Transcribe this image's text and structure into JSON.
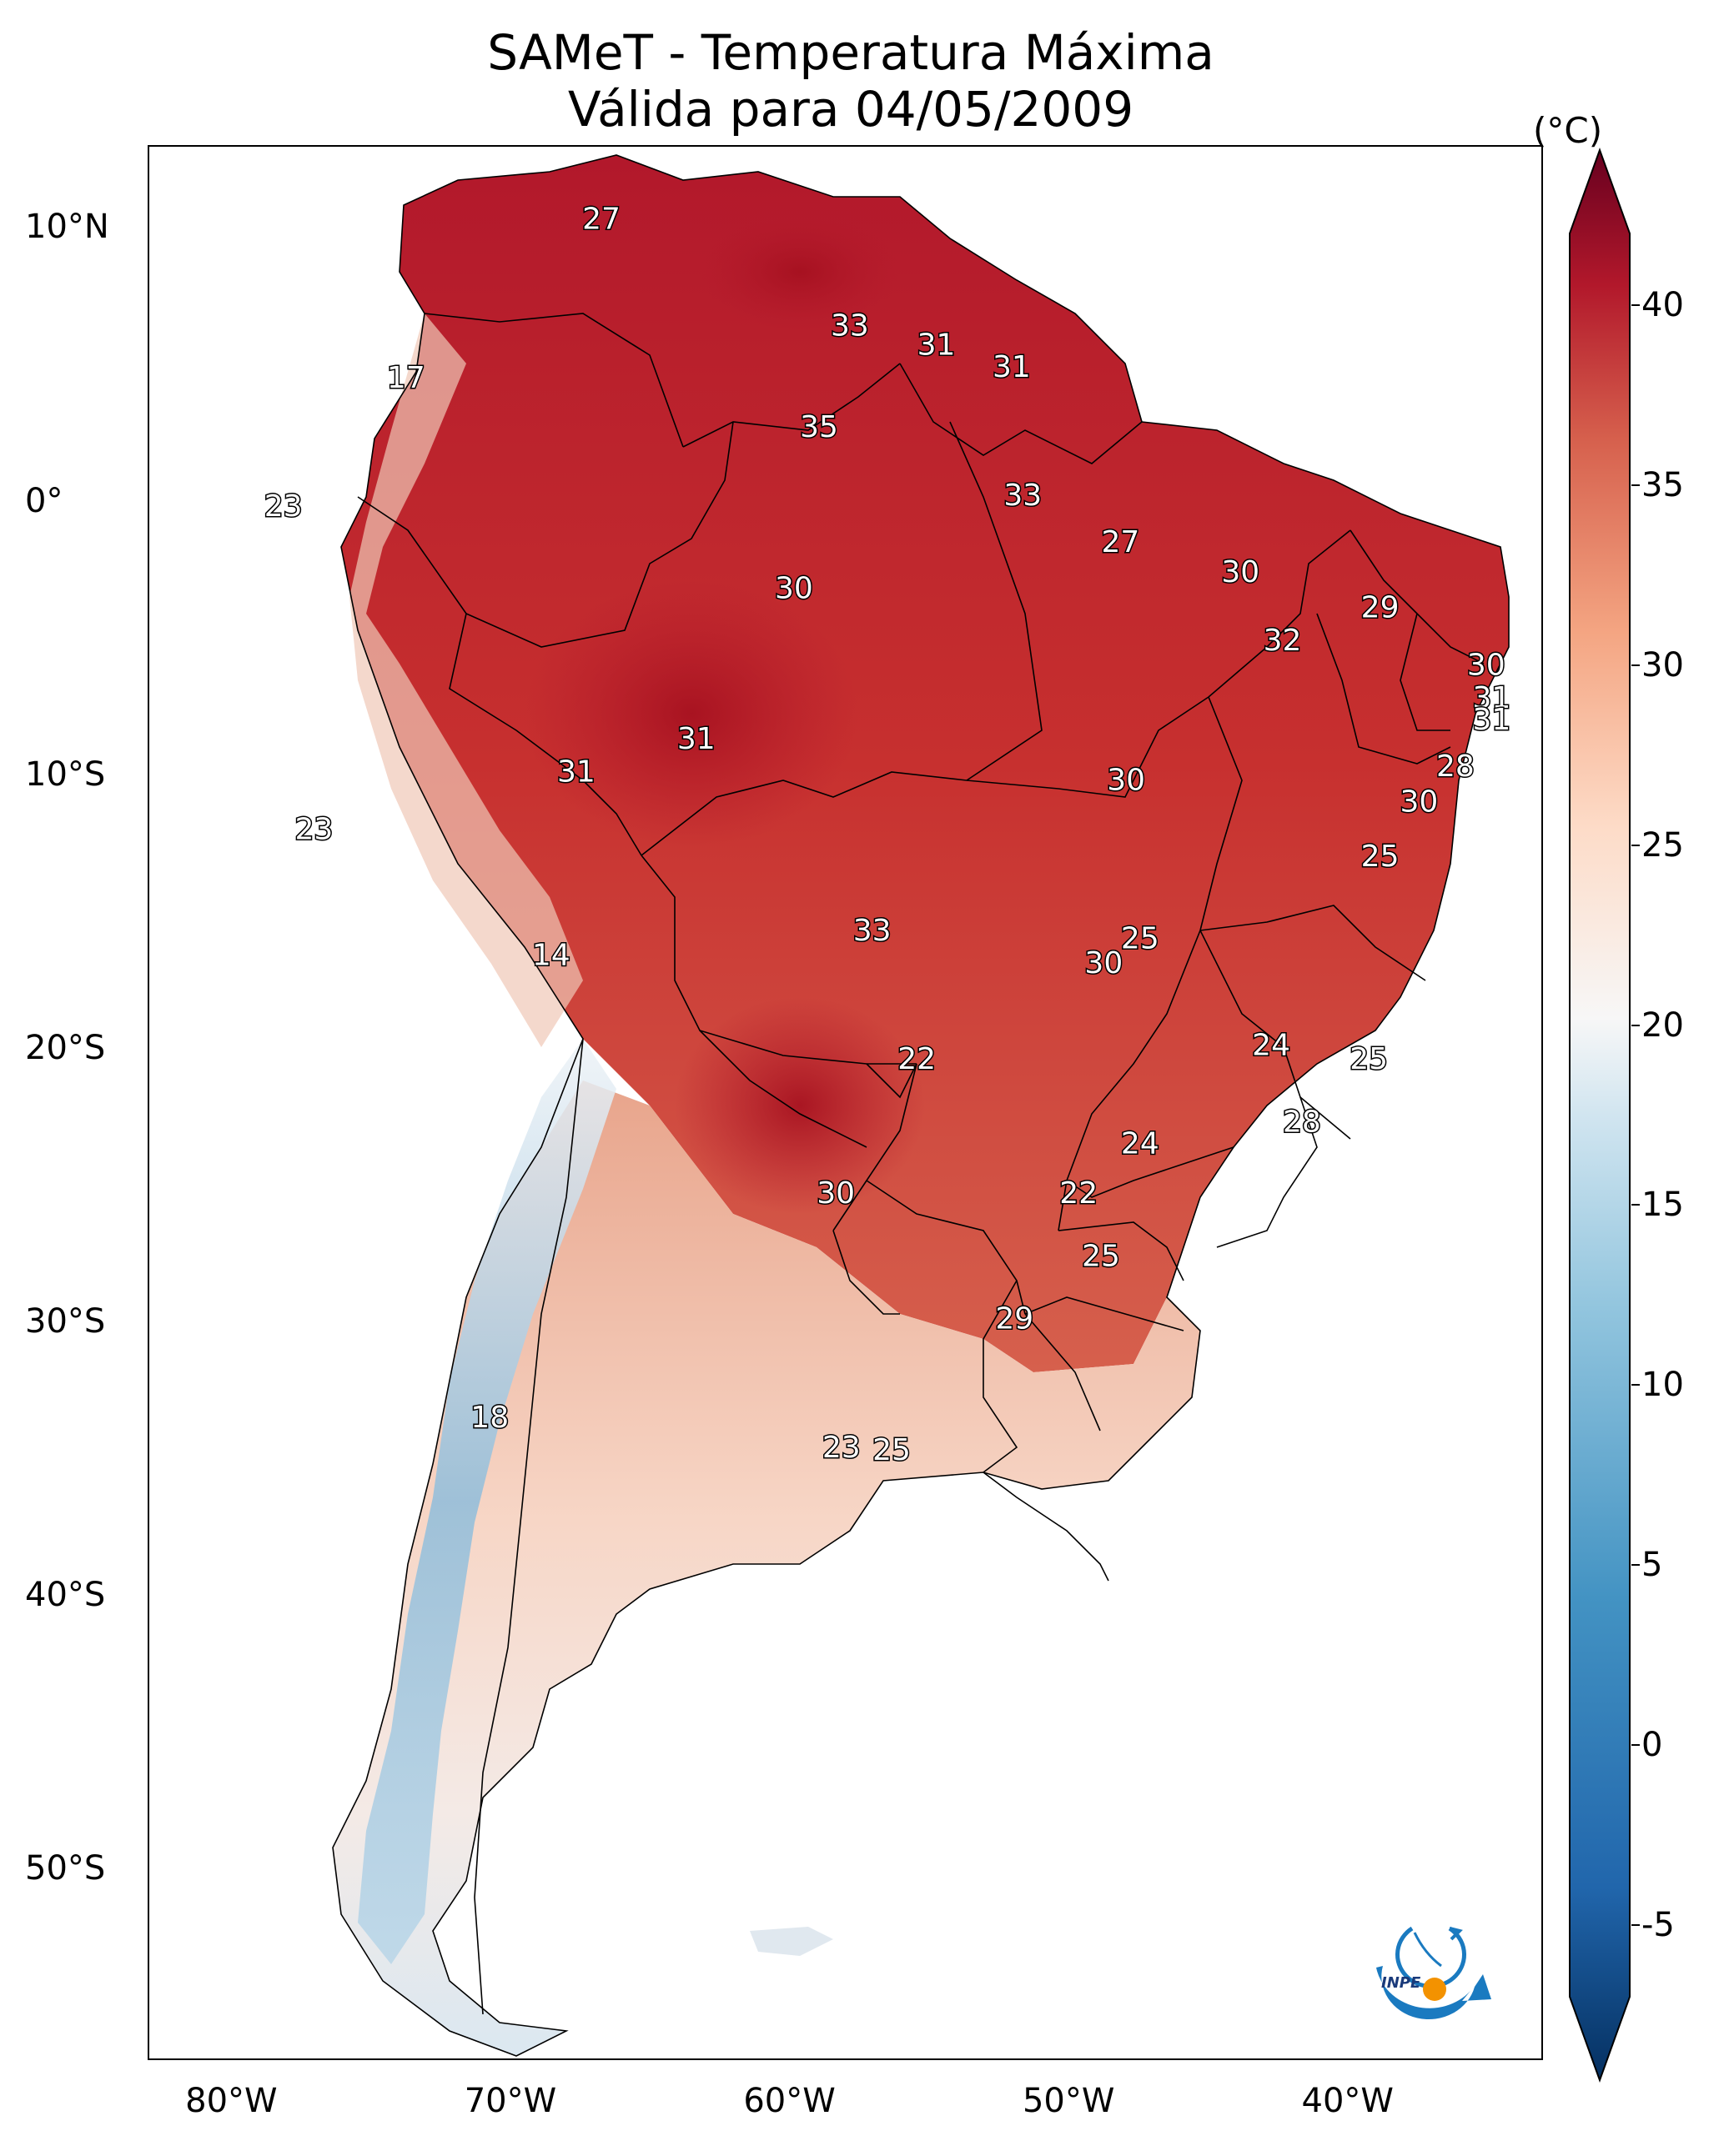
{
  "title": {
    "line1": "SAMeT - Temperatura Máxima",
    "line2": "Válida para 04/05/2009"
  },
  "chart_data": {
    "type": "heatmap",
    "title": "SAMeT - Temperatura Máxima",
    "subtitle": "Válida para 04/05/2009",
    "variable": "Temperatura Máxima",
    "unit": "(°C)",
    "xlim": [
      -83,
      -33
    ],
    "ylim": [
      -57,
      13
    ],
    "x_ticks": [
      {
        "value": -80,
        "label": "80°W"
      },
      {
        "value": -70,
        "label": "70°W"
      },
      {
        "value": -60,
        "label": "60°W"
      },
      {
        "value": -50,
        "label": "50°W"
      },
      {
        "value": -40,
        "label": "40°W"
      }
    ],
    "y_ticks": [
      {
        "value": 10,
        "label": "10°N"
      },
      {
        "value": 0,
        "label": "0°"
      },
      {
        "value": -10,
        "label": "10°S"
      },
      {
        "value": -20,
        "label": "20°S"
      },
      {
        "value": -30,
        "label": "30°S"
      },
      {
        "value": -40,
        "label": "40°S"
      },
      {
        "value": -50,
        "label": "50°S"
      }
    ],
    "colorbar": {
      "min": -7,
      "max": 42,
      "ticks": [
        40,
        35,
        30,
        25,
        20,
        15,
        10,
        5,
        0,
        -5
      ],
      "tick_labels": [
        "40",
        "35",
        "30",
        "25",
        "20",
        "15",
        "10",
        "5",
        "0",
        "-5"
      ],
      "colormap": "RdBu_r"
    },
    "point_labels": [
      {
        "lon": -66.8,
        "lat": 10.3,
        "text": "27"
      },
      {
        "lon": -57.9,
        "lat": 6.4,
        "text": "33"
      },
      {
        "lon": -54.8,
        "lat": 5.7,
        "text": "31"
      },
      {
        "lon": -52.1,
        "lat": 4.9,
        "text": "31"
      },
      {
        "lon": -73.8,
        "lat": 4.5,
        "text": "17"
      },
      {
        "lon": -59.0,
        "lat": 2.7,
        "text": "35"
      },
      {
        "lon": -51.7,
        "lat": 0.2,
        "text": "33"
      },
      {
        "lon": -78.2,
        "lat": -0.2,
        "text": "23"
      },
      {
        "lon": -48.2,
        "lat": -1.5,
        "text": "27"
      },
      {
        "lon": -43.9,
        "lat": -2.6,
        "text": "30"
      },
      {
        "lon": -59.9,
        "lat": -3.2,
        "text": "30"
      },
      {
        "lon": -38.9,
        "lat": -3.9,
        "text": "29"
      },
      {
        "lon": -42.4,
        "lat": -5.1,
        "text": "32"
      },
      {
        "lon": -35.1,
        "lat": -6.0,
        "text": "30"
      },
      {
        "lon": -34.9,
        "lat": -7.2,
        "text": "31"
      },
      {
        "lon": -34.9,
        "lat": -8.0,
        "text": "31"
      },
      {
        "lon": -63.4,
        "lat": -8.7,
        "text": "31"
      },
      {
        "lon": -36.2,
        "lat": -9.7,
        "text": "28"
      },
      {
        "lon": -67.7,
        "lat": -9.9,
        "text": "31"
      },
      {
        "lon": -48.0,
        "lat": -10.2,
        "text": "30"
      },
      {
        "lon": -37.5,
        "lat": -11.0,
        "text": "30"
      },
      {
        "lon": -77.1,
        "lat": -12.0,
        "text": "23"
      },
      {
        "lon": -38.9,
        "lat": -13.0,
        "text": "25"
      },
      {
        "lon": -57.1,
        "lat": -15.7,
        "text": "33"
      },
      {
        "lon": -47.5,
        "lat": -16.0,
        "text": "25"
      },
      {
        "lon": -48.8,
        "lat": -16.9,
        "text": "30"
      },
      {
        "lon": -68.6,
        "lat": -16.6,
        "text": "14"
      },
      {
        "lon": -42.8,
        "lat": -19.9,
        "text": "24"
      },
      {
        "lon": -55.5,
        "lat": -20.4,
        "text": "22"
      },
      {
        "lon": -39.3,
        "lat": -20.4,
        "text": "25"
      },
      {
        "lon": -41.7,
        "lat": -22.7,
        "text": "28"
      },
      {
        "lon": -47.5,
        "lat": -23.5,
        "text": "24"
      },
      {
        "lon": -58.4,
        "lat": -25.3,
        "text": "30"
      },
      {
        "lon": -49.7,
        "lat": -25.3,
        "text": "22"
      },
      {
        "lon": -48.9,
        "lat": -27.6,
        "text": "25"
      },
      {
        "lon": -52.0,
        "lat": -29.9,
        "text": "29"
      },
      {
        "lon": -70.8,
        "lat": -33.5,
        "text": "18"
      },
      {
        "lon": -58.2,
        "lat": -34.6,
        "text": "23"
      },
      {
        "lon": -56.4,
        "lat": -34.7,
        "text": "25"
      }
    ]
  }
}
